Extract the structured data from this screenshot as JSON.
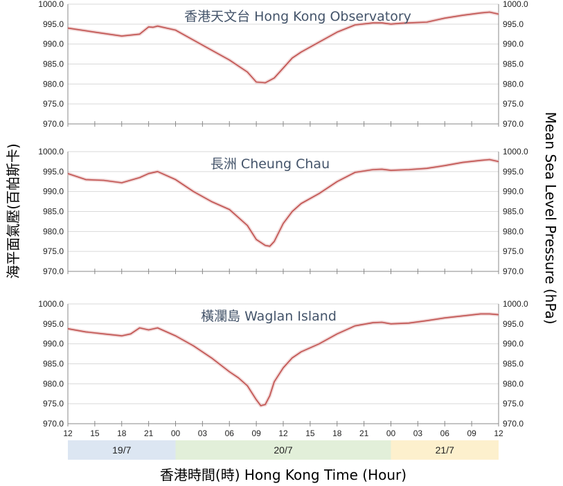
{
  "chart_data": {
    "type": "line",
    "y_axis_label": "海平面氣壓(百帕斯卡)",
    "y_axis_label_right": "Mean Sea Level Pressure (hPa)",
    "x_axis_label": "香港時間(時) Hong Kong Time (Hour)",
    "x_tick_labels": [
      "12",
      "15",
      "18",
      "21",
      "00",
      "03",
      "06",
      "09",
      "12",
      "15",
      "18",
      "21",
      "00",
      "03",
      "06",
      "09",
      "12"
    ],
    "y_tick_labels": [
      "1000.0",
      "995.0",
      "990.0",
      "985.0",
      "980.0",
      "975.0",
      "970.0"
    ],
    "ylim": [
      970,
      1000
    ],
    "x_unit": "hours since 12:00 on 19/7",
    "date_bands": [
      {
        "label": "19/7",
        "start": 0,
        "end": 12,
        "color": "#dce6f2"
      },
      {
        "label": "20/7",
        "start": 12,
        "end": 36,
        "color": "#e2efd9"
      },
      {
        "label": "21/7",
        "start": 36,
        "end": 48,
        "color": "#fdf0cd"
      }
    ],
    "line_color": "#c0504d",
    "panels": [
      {
        "title": "香港天文台 Hong Kong Observatory",
        "x": [
          0,
          3,
          6,
          8,
          9,
          9.5,
          10,
          12,
          14,
          16,
          18,
          20,
          21,
          22,
          23,
          24,
          25,
          26,
          28,
          30,
          32,
          34,
          35,
          36,
          37,
          38,
          40,
          42,
          44,
          46,
          47,
          48
        ],
        "y": [
          994.0,
          993.0,
          992.0,
          992.5,
          994.3,
          994.2,
          994.5,
          993.5,
          991.0,
          988.5,
          986.0,
          983.0,
          980.5,
          980.3,
          981.5,
          984.0,
          986.5,
          988.0,
          990.5,
          993.0,
          994.8,
          995.3,
          995.3,
          995.0,
          995.2,
          995.3,
          995.5,
          996.5,
          997.2,
          997.8,
          998.0,
          997.5
        ]
      },
      {
        "title": "長洲 Cheung Chau",
        "x": [
          0,
          2,
          4,
          6,
          8,
          9,
          10,
          12,
          14,
          16,
          18,
          20,
          21,
          22,
          22.5,
          23,
          24,
          25,
          26,
          28,
          30,
          32,
          34,
          35,
          36,
          38,
          40,
          42,
          44,
          46,
          47,
          48
        ],
        "y": [
          994.5,
          993.0,
          992.8,
          992.2,
          993.5,
          994.5,
          995.0,
          993.0,
          990.0,
          987.5,
          985.5,
          981.5,
          978.0,
          976.5,
          976.3,
          977.5,
          982.0,
          985.0,
          987.0,
          989.5,
          992.5,
          994.8,
          995.5,
          995.6,
          995.3,
          995.5,
          995.8,
          996.5,
          997.3,
          997.8,
          998.0,
          997.5
        ]
      },
      {
        "title": "橫瀾島 Waglan Island",
        "x": [
          0,
          2,
          4,
          6,
          7,
          8,
          9,
          10,
          12,
          14,
          16,
          18,
          19,
          20,
          21,
          21.5,
          22,
          22.5,
          23,
          24,
          25,
          26,
          28,
          30,
          32,
          34,
          35,
          36,
          38,
          40,
          42,
          44,
          46,
          47,
          48
        ],
        "y": [
          993.8,
          993.0,
          992.5,
          992.0,
          992.5,
          994.0,
          993.5,
          994.0,
          992.0,
          989.5,
          986.5,
          983.0,
          981.5,
          979.5,
          976.0,
          974.5,
          974.8,
          977.0,
          980.5,
          984.0,
          986.5,
          988.0,
          990.0,
          992.5,
          994.5,
          995.3,
          995.4,
          995.0,
          995.2,
          995.8,
          996.5,
          997.0,
          997.5,
          997.5,
          997.3
        ]
      }
    ]
  }
}
